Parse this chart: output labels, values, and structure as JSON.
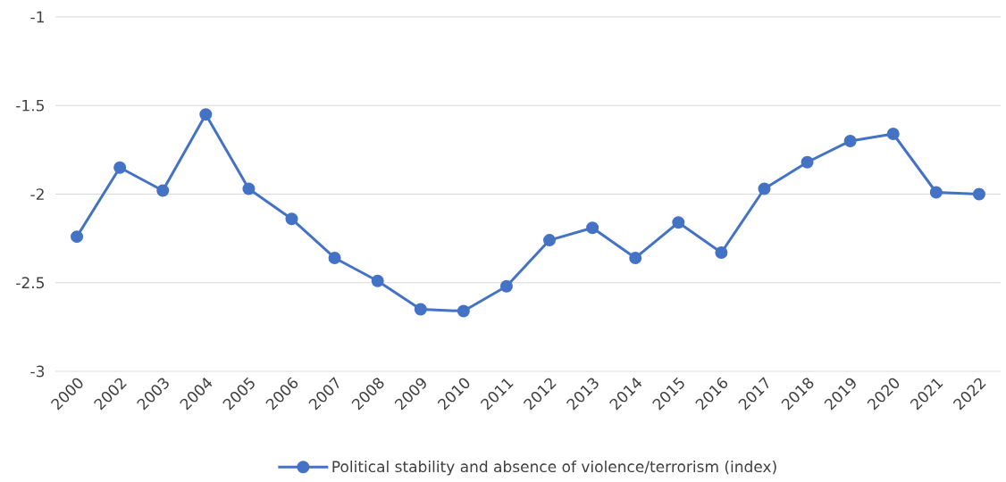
{
  "chart_data": {
    "type": "line",
    "categories": [
      "2000",
      "2002",
      "2003",
      "2004",
      "2005",
      "2006",
      "2007",
      "2008",
      "2009",
      "2010",
      "2011",
      "2012",
      "2013",
      "2014",
      "2015",
      "2016",
      "2017",
      "2018",
      "2019",
      "2020",
      "2021",
      "2022"
    ],
    "series": [
      {
        "name": "Political stability and absence of violence/terrorism (index)",
        "color": "#4472c4",
        "values": [
          -2.24,
          -1.85,
          -1.98,
          -1.55,
          -1.97,
          -2.14,
          -2.36,
          -2.49,
          -2.65,
          -2.66,
          -2.52,
          -2.26,
          -2.19,
          -2.36,
          -2.16,
          -2.33,
          -1.97,
          -1.82,
          -1.7,
          -1.66,
          -1.99,
          -2.0
        ]
      }
    ],
    "ylim": [
      -3,
      -1
    ],
    "yticks": [
      -3,
      -2.5,
      -2,
      -1.5,
      -1
    ],
    "grid": "y",
    "legend": "bottom",
    "marker": "circle",
    "line_style": "solid"
  }
}
